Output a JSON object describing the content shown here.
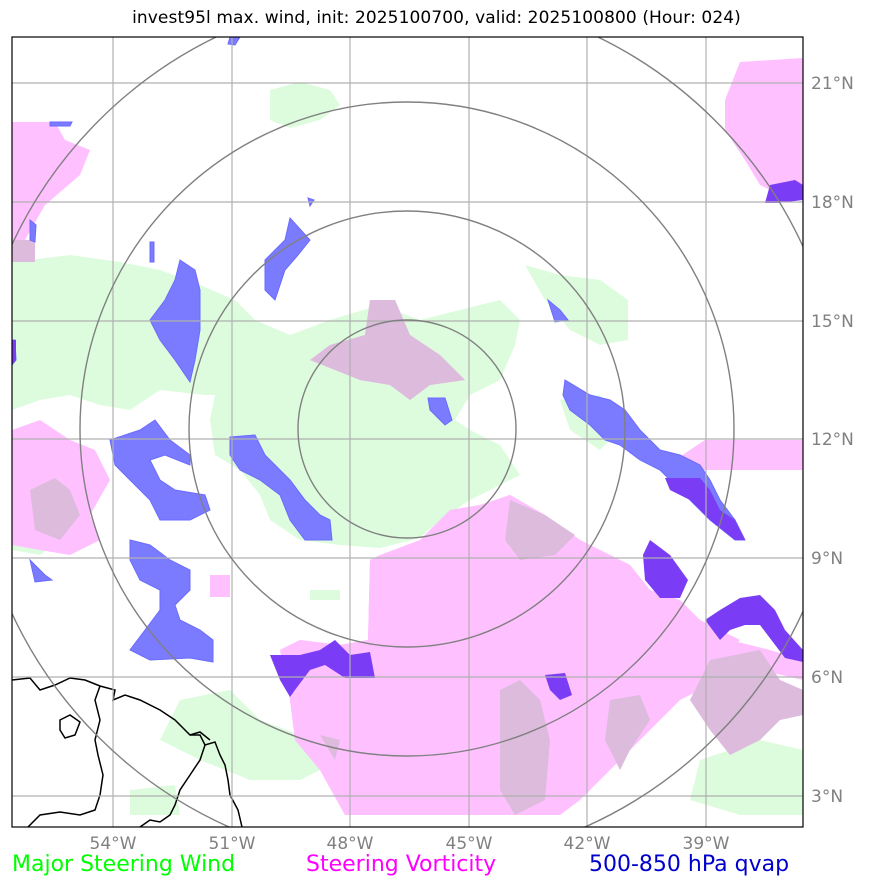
{
  "title": "invest95l max. wind, init: 2025100700, valid: 2025100800 (Hour: 024)",
  "lon_labels": [
    "54°W",
    "51°W",
    "48°W",
    "45°W",
    "42°W",
    "39°W"
  ],
  "lat_labels": [
    "21°N",
    "18°N",
    "15°N",
    "12°N",
    "9°N",
    "6°N",
    "3°N"
  ],
  "legend": [
    {
      "label": "Major Steering Wind",
      "color": "#00ff00"
    },
    {
      "label": "Steering Vorticity",
      "color": "#ff00ff"
    },
    {
      "label": "500-850 hPa qvap",
      "color": "#0000cc"
    }
  ],
  "colors": {
    "wind_fill": "#ddfcdd",
    "vorticity_fill": "#ffc0ff",
    "qvap_fill": "#7b7bff",
    "qvap_dark": "#7a3df5",
    "overlap": "#dcbbdc",
    "range_rings": "#808080",
    "gridlines": "#b0b0b0",
    "tick_labels": "#808080"
  }
}
